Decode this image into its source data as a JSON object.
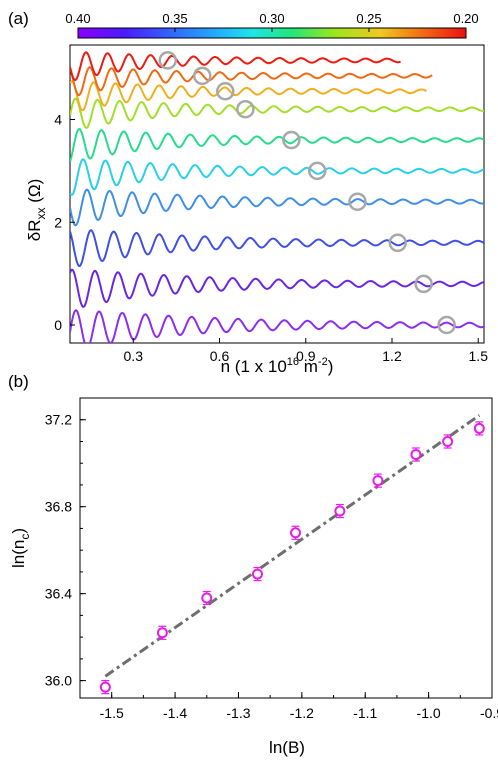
{
  "panel_a": {
    "label": "(a)",
    "ylabel": "δR",
    "ylabel_sub": "xx",
    "ylabel_unit": " (Ω)",
    "xlabel_pre": "n (1 x 10",
    "xlabel_sup": "16",
    "xlabel_mid": " m",
    "xlabel_sup2": "-2",
    "xlabel_post": ")",
    "colorbar_ticks": [
      "0.40",
      "0.35",
      "0.30",
      "0.25",
      "0.20"
    ],
    "xticks": [
      "0.3",
      "0.6",
      "0.9",
      "1.2",
      "1.5"
    ],
    "yticks": [
      "0",
      "2",
      "4"
    ]
  },
  "panel_b": {
    "label": "(b)",
    "ylabel_pre": "ln(n",
    "ylabel_sub": "c",
    "ylabel_post": ")",
    "xlabel": "ln(B)",
    "xticks": [
      "-1.5",
      "-1.4",
      "-1.3",
      "-1.2",
      "-1.1",
      "-1.0",
      "-0.9"
    ],
    "yticks": [
      "36.0",
      "36.4",
      "36.8",
      "37.2"
    ]
  },
  "colors": {
    "scatter_marker": "#e61ee6",
    "fit_line": "#6e6e6e",
    "circle_marker": "#a8a8a8"
  },
  "chart_data": [
    {
      "type": "line",
      "panel": "a",
      "xlim": [
        0.08,
        1.52
      ],
      "ylim": [
        -0.35,
        5.45
      ],
      "colorbar_range": [
        0.4,
        0.2
      ],
      "colorbar_ticks": [
        0.4,
        0.35,
        0.3,
        0.25,
        0.2
      ],
      "series": [
        {
          "offset": 0.0,
          "x_end": 1.52,
          "marker_x": 1.39,
          "color": "#8c2ef0"
        },
        {
          "offset": 0.8,
          "x_end": 1.52,
          "marker_x": 1.31,
          "color": "#6a26e4"
        },
        {
          "offset": 1.6,
          "x_end": 1.52,
          "marker_x": 1.22,
          "color": "#3f4fe8"
        },
        {
          "offset": 2.4,
          "x_end": 1.52,
          "marker_x": 1.08,
          "color": "#3f8fe8"
        },
        {
          "offset": 3.0,
          "x_end": 1.52,
          "marker_x": 0.94,
          "color": "#28d0e8"
        },
        {
          "offset": 3.6,
          "x_end": 1.52,
          "marker_x": 0.85,
          "color": "#26dc8c"
        },
        {
          "offset": 4.2,
          "x_end": 1.52,
          "marker_x": 0.69,
          "color": "#a2e028"
        },
        {
          "offset": 4.55,
          "x_end": 1.32,
          "marker_x": 0.62,
          "color": "#f0b01e"
        },
        {
          "offset": 4.85,
          "x_end": 1.34,
          "marker_x": 0.54,
          "color": "#f06a14"
        },
        {
          "offset": 5.15,
          "x_end": 1.23,
          "marker_x": 0.42,
          "color": "#ee1c10"
        }
      ]
    },
    {
      "type": "scatter",
      "panel": "b",
      "xlabel": "ln(B)",
      "ylabel": "ln(n_c)",
      "xlim": [
        -1.55,
        -0.9
      ],
      "ylim": [
        35.92,
        37.3
      ],
      "points": [
        {
          "x": -1.51,
          "y": 35.97
        },
        {
          "x": -1.42,
          "y": 36.22
        },
        {
          "x": -1.35,
          "y": 36.38
        },
        {
          "x": -1.27,
          "y": 36.49
        },
        {
          "x": -1.21,
          "y": 36.68
        },
        {
          "x": -1.14,
          "y": 36.78
        },
        {
          "x": -1.08,
          "y": 36.92
        },
        {
          "x": -1.02,
          "y": 37.04
        },
        {
          "x": -0.97,
          "y": 37.1
        },
        {
          "x": -0.92,
          "y": 37.16
        }
      ],
      "error": 0.03,
      "fit": {
        "x": [
          -1.51,
          -0.92
        ],
        "y": [
          36.02,
          37.22
        ],
        "style": "dash-dot"
      }
    }
  ]
}
